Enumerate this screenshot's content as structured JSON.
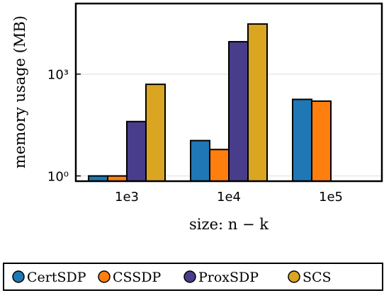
{
  "chart_data": {
    "type": "bar",
    "xlabel": "size: n − k",
    "ylabel": "memory usage (MB)",
    "y_scale": "log",
    "ylim": [
      0.7,
      120000
    ],
    "yticks": [
      {
        "value": 1,
        "label": "10⁰"
      },
      {
        "value": 1000,
        "label": "10³"
      }
    ],
    "grid": true,
    "legend_position": "bottom",
    "categories": [
      "1e3",
      "1e4",
      "1e5"
    ],
    "series": [
      {
        "name": "CertSDP",
        "color": "#1f77b4",
        "values": [
          1.0,
          11.0,
          180
        ]
      },
      {
        "name": "CSSDP",
        "color": "#ff7f0e",
        "values": [
          1.0,
          6.0,
          160
        ]
      },
      {
        "name": "ProxSDP",
        "color": "#483d8b",
        "values": [
          40,
          9000,
          null
        ]
      },
      {
        "name": "SCS",
        "color": "#daa520",
        "values": [
          500,
          30000,
          null
        ]
      }
    ]
  }
}
